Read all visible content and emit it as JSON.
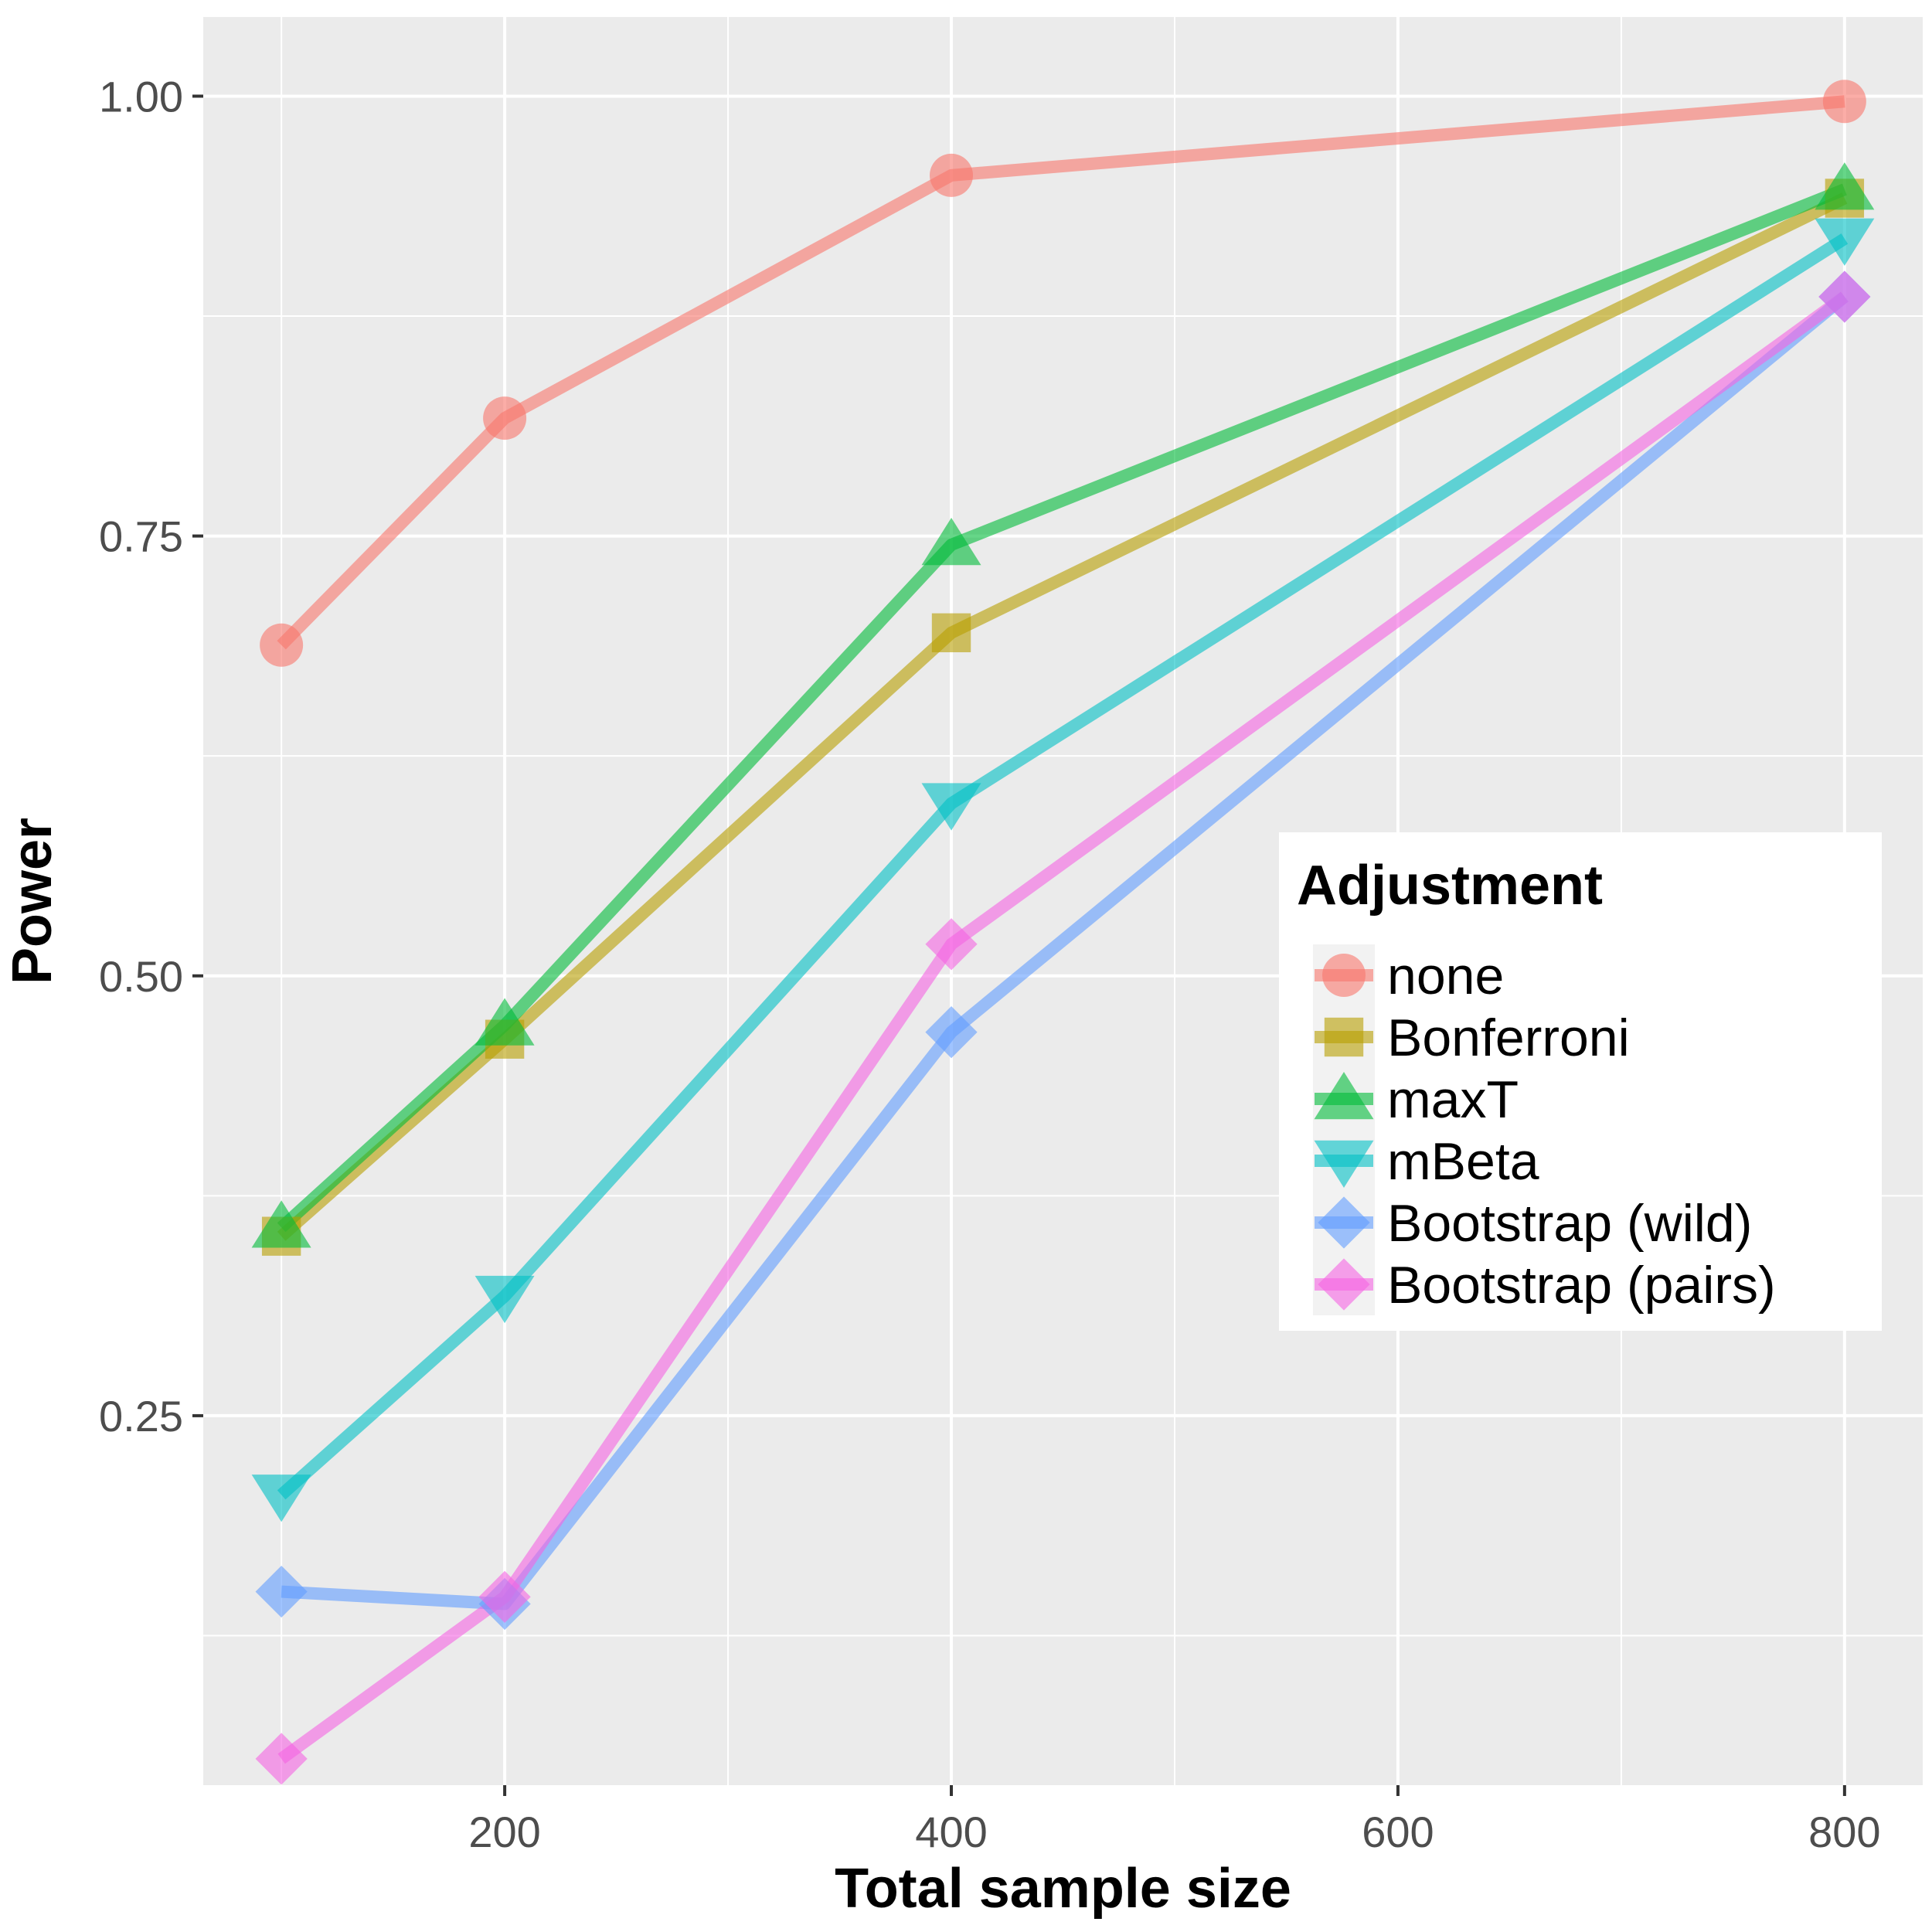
{
  "chart_data": {
    "type": "line",
    "title": "",
    "xlabel": "Total sample size",
    "ylabel": "Power",
    "xlim": [
      65,
      835
    ],
    "ylim": [
      0.04,
      1.045
    ],
    "x_ticks": [
      200,
      400,
      600,
      800
    ],
    "x_tick_labels": [
      "200",
      "400",
      "600",
      "800"
    ],
    "x_minor": [
      100,
      300,
      500,
      700
    ],
    "y_ticks": [
      0.25,
      0.5,
      0.75,
      1.0
    ],
    "y_tick_labels": [
      "0.25",
      "0.50",
      "0.75",
      "1.00"
    ],
    "y_minor": [
      0.125,
      0.375,
      0.625,
      0.875
    ],
    "grid": true,
    "legend": {
      "title": "Adjustment",
      "position": "right-center"
    },
    "x": [
      100,
      200,
      400,
      800
    ],
    "series": [
      {
        "name": "none",
        "color": "#F8766D",
        "shape": "circle",
        "values": [
          0.688,
          0.817,
          0.955,
          0.997
        ]
      },
      {
        "name": "Bonferroni",
        "color": "#B79F00",
        "shape": "square",
        "values": [
          0.352,
          0.464,
          0.695,
          0.942
        ]
      },
      {
        "name": "maxT",
        "color": "#00BA38",
        "shape": "triangle-up",
        "values": [
          0.357,
          0.472,
          0.745,
          0.947
        ]
      },
      {
        "name": "mBeta",
        "color": "#00BFC4",
        "shape": "triangle-down",
        "values": [
          0.205,
          0.318,
          0.598,
          0.919
        ]
      },
      {
        "name": "Bootstrap (wild)",
        "color": "#619CFF",
        "shape": "diamond",
        "values": [
          0.15,
          0.143,
          0.468,
          0.886
        ]
      },
      {
        "name": "Bootstrap (pairs)",
        "color": "#F564E3",
        "shape": "diamond",
        "values": [
          0.055,
          0.147,
          0.518,
          0.886
        ]
      }
    ]
  }
}
